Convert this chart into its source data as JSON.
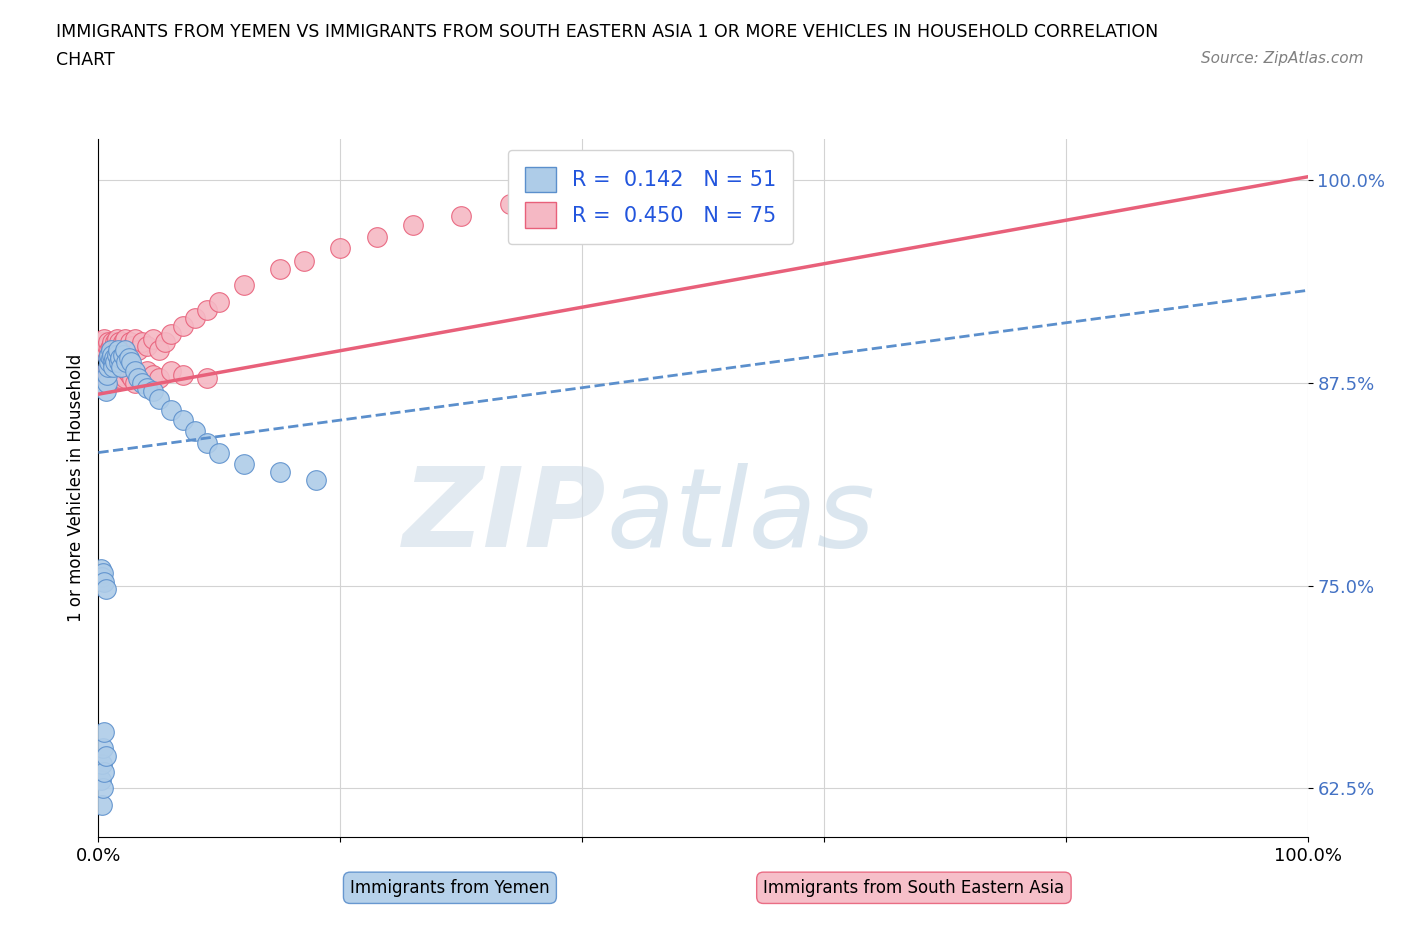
{
  "title_line1": "IMMIGRANTS FROM YEMEN VS IMMIGRANTS FROM SOUTH EASTERN ASIA 1 OR MORE VEHICLES IN HOUSEHOLD CORRELATION",
  "title_line2": "CHART",
  "source_text": "Source: ZipAtlas.com",
  "ylabel": "1 or more Vehicles in Household",
  "xmin": 0.0,
  "xmax": 1.0,
  "ymin": 0.595,
  "ymax": 1.025,
  "yticks": [
    0.625,
    0.75,
    0.875,
    1.0
  ],
  "ytick_labels": [
    "62.5%",
    "75.0%",
    "87.5%",
    "100.0%"
  ],
  "xticks": [
    0.0,
    0.2,
    0.4,
    0.6,
    0.8,
    1.0
  ],
  "xtick_labels": [
    "0.0%",
    "",
    "",
    "",
    "",
    "100.0%"
  ],
  "yemen_color": "#aecce8",
  "sea_color": "#f5b8c4",
  "yemen_line_color": "#5b8fcc",
  "sea_line_color": "#e8607a",
  "R_yemen": 0.142,
  "N_yemen": 51,
  "R_sea": 0.45,
  "N_sea": 75,
  "yemen_trend_x0": 0.0,
  "yemen_trend_y0": 0.832,
  "yemen_trend_x1": 1.0,
  "yemen_trend_y1": 0.932,
  "sea_trend_x0": 0.0,
  "sea_trend_y0": 0.868,
  "sea_trend_x1": 1.0,
  "sea_trend_y1": 1.002,
  "yemen_scatter_x": [
    0.002,
    0.003,
    0.003,
    0.004,
    0.004,
    0.005,
    0.005,
    0.006,
    0.006,
    0.007,
    0.007,
    0.008,
    0.008,
    0.009,
    0.009,
    0.01,
    0.01,
    0.011,
    0.012,
    0.012,
    0.013,
    0.014,
    0.015,
    0.016,
    0.017,
    0.018,
    0.019,
    0.02,
    0.022,
    0.023,
    0.025,
    0.027,
    0.03,
    0.033,
    0.036,
    0.04,
    0.045,
    0.05,
    0.06,
    0.07,
    0.08,
    0.09,
    0.1,
    0.12,
    0.15,
    0.18,
    0.002,
    0.003,
    0.004,
    0.005,
    0.006
  ],
  "yemen_scatter_y": [
    0.63,
    0.615,
    0.64,
    0.625,
    0.65,
    0.635,
    0.66,
    0.645,
    0.87,
    0.875,
    0.88,
    0.885,
    0.89,
    0.888,
    0.892,
    0.89,
    0.895,
    0.892,
    0.888,
    0.885,
    0.89,
    0.888,
    0.892,
    0.895,
    0.888,
    0.89,
    0.885,
    0.892,
    0.895,
    0.888,
    0.89,
    0.888,
    0.882,
    0.878,
    0.875,
    0.872,
    0.87,
    0.865,
    0.858,
    0.852,
    0.845,
    0.838,
    0.832,
    0.825,
    0.82,
    0.815,
    0.76,
    0.755,
    0.758,
    0.752,
    0.748
  ],
  "sea_scatter_x": [
    0.002,
    0.003,
    0.004,
    0.005,
    0.006,
    0.007,
    0.008,
    0.009,
    0.01,
    0.011,
    0.012,
    0.013,
    0.014,
    0.015,
    0.016,
    0.017,
    0.018,
    0.019,
    0.02,
    0.022,
    0.024,
    0.026,
    0.028,
    0.03,
    0.033,
    0.036,
    0.04,
    0.045,
    0.05,
    0.055,
    0.06,
    0.07,
    0.08,
    0.09,
    0.1,
    0.12,
    0.15,
    0.17,
    0.2,
    0.23,
    0.26,
    0.3,
    0.34,
    0.002,
    0.003,
    0.004,
    0.005,
    0.006,
    0.007,
    0.008,
    0.009,
    0.01,
    0.011,
    0.012,
    0.013,
    0.014,
    0.015,
    0.016,
    0.017,
    0.018,
    0.019,
    0.02,
    0.022,
    0.024,
    0.026,
    0.028,
    0.03,
    0.033,
    0.036,
    0.04,
    0.045,
    0.05,
    0.06,
    0.07,
    0.09
  ],
  "sea_scatter_y": [
    0.895,
    0.9,
    0.898,
    0.902,
    0.895,
    0.898,
    0.9,
    0.895,
    0.898,
    0.9,
    0.895,
    0.898,
    0.9,
    0.902,
    0.898,
    0.9,
    0.895,
    0.898,
    0.9,
    0.902,
    0.895,
    0.9,
    0.898,
    0.902,
    0.895,
    0.9,
    0.898,
    0.902,
    0.895,
    0.9,
    0.905,
    0.91,
    0.915,
    0.92,
    0.925,
    0.935,
    0.945,
    0.95,
    0.958,
    0.965,
    0.972,
    0.978,
    0.985,
    0.875,
    0.878,
    0.88,
    0.875,
    0.878,
    0.882,
    0.878,
    0.88,
    0.882,
    0.88,
    0.878,
    0.882,
    0.88,
    0.878,
    0.882,
    0.88,
    0.878,
    0.882,
    0.88,
    0.878,
    0.882,
    0.88,
    0.878,
    0.875,
    0.88,
    0.878,
    0.882,
    0.88,
    0.878,
    0.882,
    0.88,
    0.878
  ]
}
